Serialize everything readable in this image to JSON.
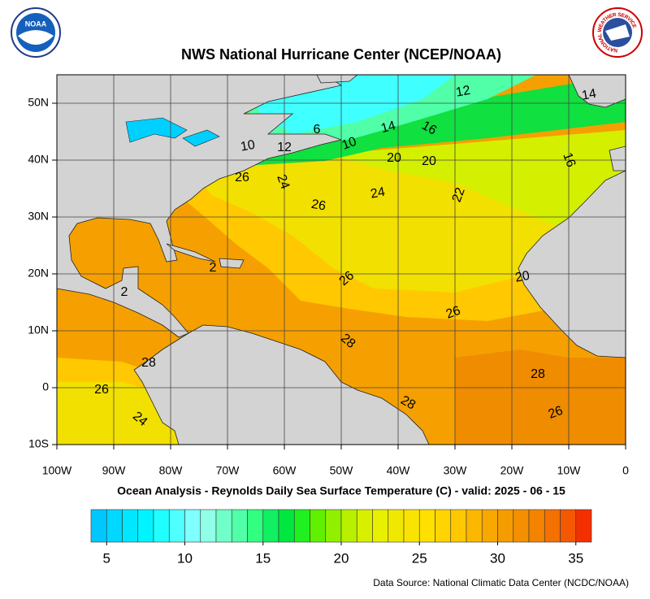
{
  "title": "NWS National Hurricane Center (NCEP/NOAA)",
  "subtitle": "Ocean Analysis - Reynolds Daily Sea Surface Temperature (C) - valid: 2025 - 06 - 15",
  "source": "Data Source: National Climatic Data Center (NCDC/NOAA)",
  "logos": {
    "left": "NOAA",
    "right": "NATIONAL WEATHER SERVICE"
  },
  "map": {
    "xlim": [
      -100,
      0
    ],
    "ylim": [
      -10,
      55
    ],
    "xticks": [
      {
        "value": -100,
        "label": "100W"
      },
      {
        "value": -90,
        "label": "90W"
      },
      {
        "value": -80,
        "label": "80W"
      },
      {
        "value": -70,
        "label": "70W"
      },
      {
        "value": -60,
        "label": "60W"
      },
      {
        "value": -50,
        "label": "50W"
      },
      {
        "value": -40,
        "label": "40W"
      },
      {
        "value": -30,
        "label": "30W"
      },
      {
        "value": -20,
        "label": "20W"
      },
      {
        "value": -10,
        "label": "10W"
      },
      0
    ],
    "yticks": [
      {
        "value": -10,
        "label": "10S"
      },
      0,
      {
        "value": 10,
        "label": "10N"
      },
      {
        "value": 20,
        "label": "20N"
      },
      {
        "value": 30,
        "label": "30N"
      },
      {
        "value": 40,
        "label": "40N"
      },
      {
        "value": 50,
        "label": "50N"
      }
    ],
    "grid": true,
    "contour_labels": [
      12,
      14,
      6,
      16,
      14,
      10,
      12,
      10,
      20,
      20,
      16,
      26,
      24,
      24,
      22,
      26,
      26,
      20,
      2,
      2,
      26,
      28,
      28,
      26,
      28,
      28,
      26,
      24
    ]
  },
  "colorbar": {
    "range": [
      4,
      36
    ],
    "ticks": [
      5,
      10,
      15,
      20,
      25,
      30,
      35
    ],
    "colors": [
      "#00c8ff",
      "#00d8ff",
      "#00e8ff",
      "#00f4ff",
      "#20ffff",
      "#50ffff",
      "#80ffff",
      "#90ffe8",
      "#70ffc8",
      "#50ffa8",
      "#30ff80",
      "#10f060",
      "#00e840",
      "#20f020",
      "#60f000",
      "#90f000",
      "#b8f000",
      "#d8f000",
      "#e8f000",
      "#f0e800",
      "#f8e400",
      "#ffe000",
      "#ffd400",
      "#ffc800",
      "#fcb800",
      "#f8a800",
      "#f59c00",
      "#f49000",
      "#f48400",
      "#f47000",
      "#f45800",
      "#f43000"
    ]
  }
}
